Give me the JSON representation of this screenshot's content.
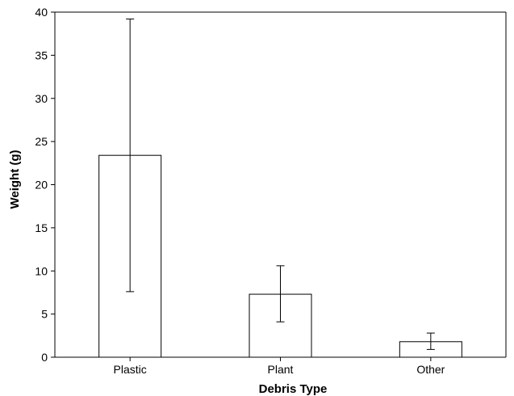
{
  "chart_data": {
    "type": "bar",
    "title": "",
    "xlabel": "Debris Type",
    "ylabel": "Weight (g)",
    "categories": [
      "Plastic",
      "Plant",
      "Other"
    ],
    "values": [
      23.4,
      7.3,
      1.8
    ],
    "error_low": [
      7.6,
      4.1,
      0.9
    ],
    "error_high": [
      39.2,
      10.6,
      2.8
    ],
    "ylim": [
      0,
      40
    ],
    "yticks": [
      0,
      5,
      10,
      15,
      20,
      25,
      30,
      35,
      40
    ],
    "grid": false,
    "bar_fill": "#ffffff",
    "bar_stroke": "#000000"
  }
}
